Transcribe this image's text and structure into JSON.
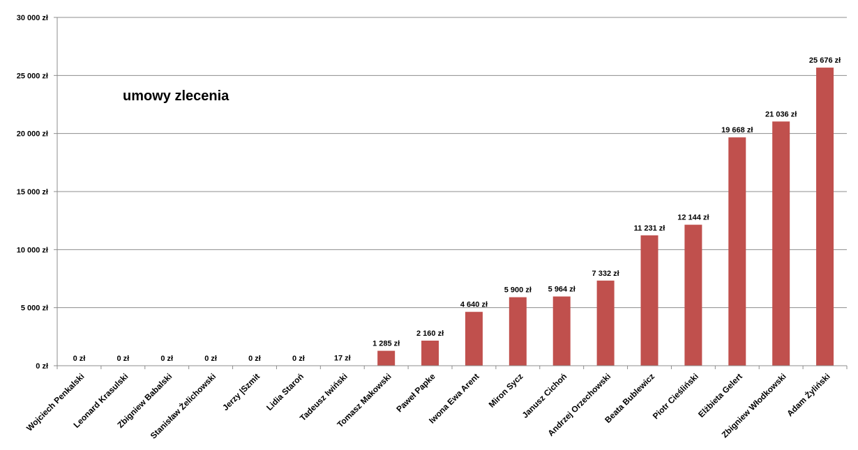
{
  "chart_data": {
    "type": "bar",
    "title": "umowy zlecenia",
    "categories": [
      "Wojciech Penkalski",
      "Leonard Krasulski",
      "Zbigniew Babalski",
      "Stanisław Żelichowski",
      "Jerzy |Szmit",
      "Lidia Staroń",
      "Tadeusz Iwiński",
      "Tomasz Makowski",
      "Paweł Papke",
      "Iwona Ewa Arent",
      "Miron Sycz",
      "Janusz Cichoń",
      "Andrzej Orzechowski",
      "Beata Bublewicz",
      "Piotr Cieśliński",
      "Elżbieta Gelert",
      "Zbigniew Włodkowski",
      "Adam Żyliński"
    ],
    "values": [
      0,
      0,
      0,
      0,
      0,
      0,
      17,
      1285,
      2160,
      4640,
      5900,
      5964,
      7332,
      11231,
      12144,
      19668,
      21036,
      25676
    ],
    "value_labels": [
      "0 zł",
      "0 zł",
      "0 zł",
      "0 zł",
      "0 zł",
      "0 zł",
      "17 zł",
      "1 285 zł",
      "2 160 zł",
      "4 640 zł",
      "5 900 zł",
      "5 964 zł",
      "7 332 zł",
      "11 231 zł",
      "12 144 zł",
      "19 668 zł",
      "21 036 zł",
      "25 676 zł"
    ],
    "ylim": [
      0,
      30000
    ],
    "yticks": [
      0,
      5000,
      10000,
      15000,
      20000,
      25000,
      30000
    ],
    "ytick_labels": [
      "0 zł",
      "5 000 zł",
      "10 000 zł",
      "15 000 zł",
      "20 000 zł",
      "25 000 zł",
      "30 000 zł"
    ],
    "xlabel": "",
    "ylabel": "",
    "grid": true,
    "legend": "none",
    "colors": {
      "bar": "#c0504d",
      "grid": "#8c8c8c",
      "axis": "#8c8c8c"
    }
  }
}
